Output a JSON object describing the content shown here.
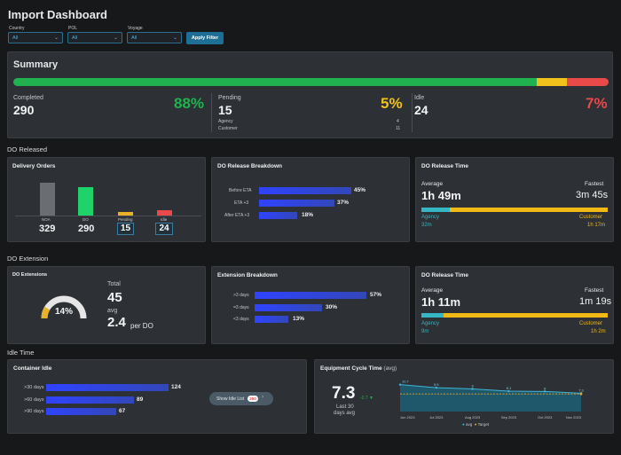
{
  "header": {
    "title": "Import Dashboard"
  },
  "filters": {
    "country_label": "Country",
    "country_value": "All",
    "pol_label": "POL",
    "pol_value": "All",
    "voyage_label": "Voyage",
    "voyage_value": "All",
    "apply_label": "Apply Filter"
  },
  "summary": {
    "title": "Summary",
    "completed_label": "Completed",
    "completed_value": "290",
    "completed_pct": "88%",
    "pending_label": "Pending",
    "pending_value": "15",
    "pending_pct": "5%",
    "agency_label": "Agency",
    "agency_value": "4",
    "customer_label": "Customer",
    "customer_value": "11",
    "idle_label": "Idle",
    "idle_value": "24",
    "idle_pct": "7%",
    "progress": {
      "completed": 0.88,
      "pending": 0.05,
      "idle": 0.07
    }
  },
  "do_released": {
    "section": "DO Released",
    "delivery_orders": {
      "title": "Delivery Orders",
      "bars": [
        {
          "label": "NOA",
          "value": "329",
          "color": "#6a6e73"
        },
        {
          "label": "DO",
          "value": "290",
          "color": "#1fd36a"
        },
        {
          "label": "Pending",
          "value": "15",
          "color": "#e9b12a"
        },
        {
          "label": "Idle",
          "value": "24",
          "color": "#e84a4a"
        }
      ]
    },
    "breakdown": {
      "title": "DO Release Breakdown",
      "rows": [
        {
          "label": "Before ETA",
          "value": "45%",
          "frac": 0.45
        },
        {
          "label": "ETA +3",
          "value": "37%",
          "frac": 0.37
        },
        {
          "label": "After ETA +3",
          "value": "18%",
          "frac": 0.18
        }
      ]
    },
    "release_time": {
      "title": "DO Release Time",
      "avg_label": "Average",
      "avg_value": "1h 49m",
      "fast_label": "Fastest",
      "fast_value": "3m 45s",
      "agency_label": "Agency",
      "agency_value": "32m",
      "customer_label": "Customer",
      "customer_value": "1h 17m",
      "agency_frac": 0.15
    }
  },
  "do_extension": {
    "section": "DO Extension",
    "extensions": {
      "title": "DO Extensions",
      "gauge_value": "14%",
      "gauge_frac": 0.14,
      "total_label": "Total",
      "total_value": "45",
      "avg_label": "avg",
      "avg_value": "2.4",
      "avg_unit": "per DO"
    },
    "breakdown": {
      "title": "Extension Breakdown",
      "rows": [
        {
          "label": ">3 days",
          "value": "57%",
          "frac": 0.57
        },
        {
          "label": "=3 days",
          "value": "30%",
          "frac": 0.3
        },
        {
          "label": "<3 days",
          "value": "13%",
          "frac": 0.13
        }
      ]
    },
    "release_time": {
      "title": "DO Release Time",
      "avg_label": "Average",
      "avg_value": "1h 11m",
      "fast_label": "Fastest",
      "fast_value": "1m 19s",
      "agency_label": "Agency",
      "agency_value": "9m",
      "customer_label": "Customer",
      "customer_value": "1h 2m",
      "agency_frac": 0.12
    }
  },
  "idle_time": {
    "section": "Idle Time",
    "container_idle": {
      "title": "Container Idle",
      "rows": [
        {
          "label": ">30 days",
          "value": "124",
          "frac": 1.0
        },
        {
          "label": ">60 days",
          "value": "89",
          "frac": 0.72
        },
        {
          "label": ">90 days",
          "value": "67",
          "frac": 0.54
        }
      ],
      "show_label": "Show Idle List",
      "show_badge": "280"
    },
    "cycle_time": {
      "title": "Equipment Cycle Time",
      "title_suffix": "(avg)",
      "value": "7.3",
      "delta": "-0.7 ▼",
      "caption1": "Last 30",
      "caption2": "days avg",
      "chart_data": {
        "type": "line",
        "x": [
          "Jun 2023",
          "Jul 2023",
          "Aug 2023",
          "Sep 2023",
          "Oct 2023",
          "Nov 2023"
        ],
        "series": [
          {
            "name": "avg",
            "values": [
              10.7,
              9.5,
              9,
              8.1,
              8,
              7.3
            ],
            "color": "#3fb6d9"
          },
          {
            "name": "Target",
            "values": [
              7,
              7,
              7,
              7,
              7,
              7
            ],
            "color": "#e8a32a"
          }
        ],
        "point_labels": [
          "10.7",
          "9.5",
          "9",
          "8.1",
          "8",
          "7.3"
        ],
        "ylim": [
          0,
          12
        ],
        "legend": "bottom-center"
      }
    }
  }
}
